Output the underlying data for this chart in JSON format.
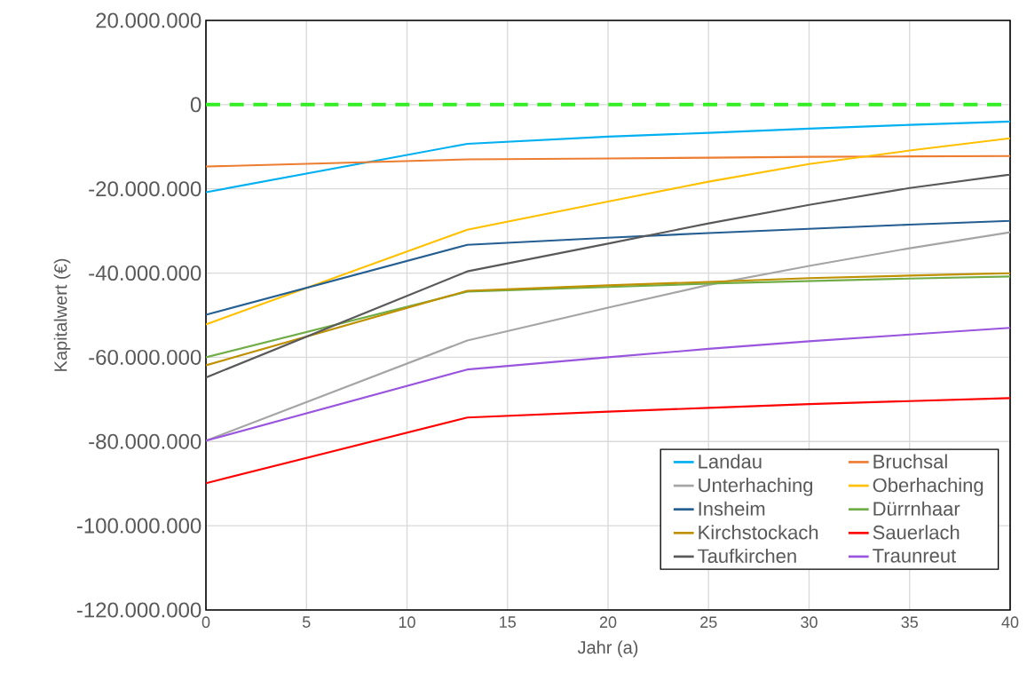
{
  "chart_data": {
    "type": "line",
    "xlabel": "Jahr (a)",
    "ylabel": "Kapitalwert (€)",
    "x": [
      0,
      13,
      20,
      25,
      30,
      35,
      40
    ],
    "series": [
      {
        "name": "Landau",
        "color": "#00b0f0",
        "values": [
          -20800000,
          -9300000,
          -7600000,
          -6700000,
          -5700000,
          -4800000,
          -4000000
        ]
      },
      {
        "name": "Bruchsal",
        "color": "#ed7d31",
        "values": [
          -14700000,
          -13000000,
          -12800000,
          -12600000,
          -12400000,
          -12300000,
          -12200000
        ]
      },
      {
        "name": "Unterhaching",
        "color": "#a5a5a5",
        "values": [
          -79800000,
          -56000000,
          -48200000,
          -42800000,
          -38300000,
          -34100000,
          -30300000
        ]
      },
      {
        "name": "Oberhaching",
        "color": "#ffc000",
        "values": [
          -52200000,
          -29700000,
          -23000000,
          -18300000,
          -14100000,
          -10900000,
          -8000000
        ]
      },
      {
        "name": "Insheim",
        "color": "#255e91",
        "values": [
          -49900000,
          -33300000,
          -31600000,
          -30500000,
          -29500000,
          -28500000,
          -27600000
        ]
      },
      {
        "name": "Dürrnhaar",
        "color": "#70ad47",
        "values": [
          -60000000,
          -44400000,
          -43300000,
          -42500000,
          -41900000,
          -41300000,
          -40800000
        ]
      },
      {
        "name": "Kirchstockach",
        "color": "#bf9000",
        "values": [
          -61900000,
          -44200000,
          -42900000,
          -42100000,
          -41200000,
          -40600000,
          -40000000
        ]
      },
      {
        "name": "Sauerlach",
        "color": "#ff0000",
        "values": [
          -89900000,
          -74300000,
          -72900000,
          -72000000,
          -71100000,
          -70400000,
          -69700000
        ]
      },
      {
        "name": "Taufkirchen",
        "color": "#595959",
        "values": [
          -64800000,
          -39600000,
          -33000000,
          -28200000,
          -23800000,
          -19800000,
          -16600000
        ]
      },
      {
        "name": "Traunreut",
        "color": "#9955dd",
        "values": [
          -79800000,
          -62900000,
          -60000000,
          -58000000,
          -56200000,
          -54600000,
          -53000000
        ]
      }
    ],
    "xlim": [
      0,
      40
    ],
    "xticks": [
      0,
      5,
      10,
      15,
      20,
      25,
      30,
      35,
      40
    ],
    "ylim": [
      -120000000,
      20000000
    ],
    "yticks": [
      {
        "value": -120000000,
        "label": "-120.000.000"
      },
      {
        "value": -100000000,
        "label": "-100.000.000"
      },
      {
        "value": -80000000,
        "label": "-80.000.000"
      },
      {
        "value": -60000000,
        "label": "-60.000.000"
      },
      {
        "value": -40000000,
        "label": "-40.000.000"
      },
      {
        "value": -20000000,
        "label": "-20.000.000"
      },
      {
        "value": 0,
        "label": "0"
      },
      {
        "value": 20000000,
        "label": "20.000.000"
      }
    ],
    "ref_lines": [
      {
        "axis": "y",
        "value": 0,
        "color": "#33ee22",
        "line_style": "dashed"
      }
    ],
    "grid": true,
    "legend": "bottom right",
    "line_style": "solid",
    "marker": "none"
  }
}
